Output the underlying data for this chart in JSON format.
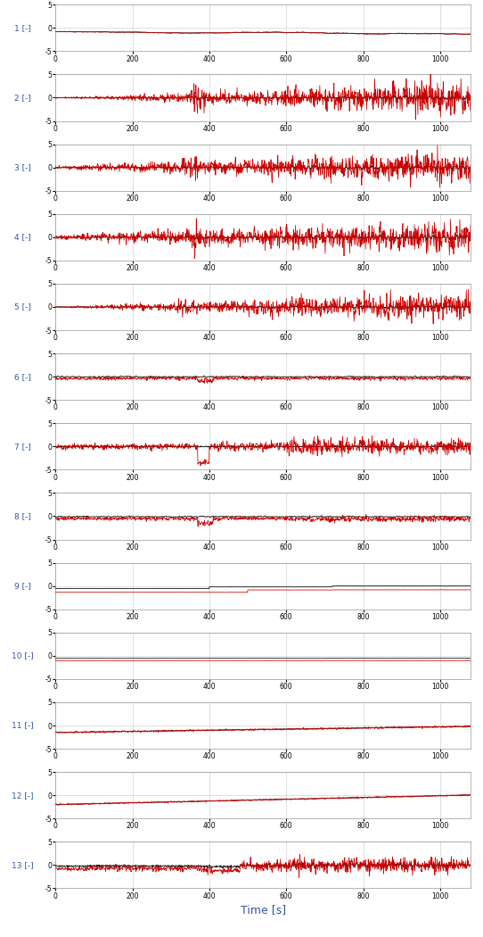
{
  "n_subplots": 13,
  "xlim": [
    0,
    1080
  ],
  "ylim": [
    -5,
    5
  ],
  "xticks": [
    0,
    200,
    400,
    600,
    800,
    1000
  ],
  "xlabel": "Time [s]",
  "black_color": "#000000",
  "red_color": "#cc0000",
  "background_color": "#ffffff",
  "fig_bg": "#ffffff",
  "grid_color": "#bbbbbb",
  "seed": 42,
  "n_points": 1080
}
